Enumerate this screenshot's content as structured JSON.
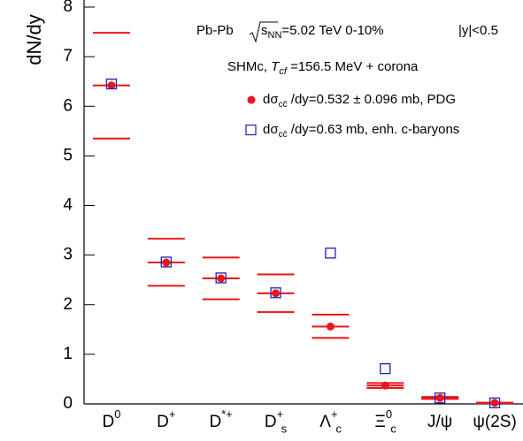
{
  "chart_data": {
    "type": "errorpoint",
    "y_label": "dN/dy",
    "annotations": [
      {
        "parts": [
          "Pb-Pb",
          "s",
          "NN",
          "=5.02 TeV 0-10%",
          "|y|<0.5"
        ]
      },
      {
        "parts": [
          "SHMc, ",
          "T",
          "cf",
          " =156.5 MeV + corona"
        ]
      }
    ],
    "categories": [
      [
        "D",
        "0"
      ],
      [
        "D",
        "+"
      ],
      [
        "D",
        "*+"
      ],
      [
        "D",
        "+",
        "s"
      ],
      [
        "Λ",
        "+",
        "c"
      ],
      [
        "Ξ",
        "0",
        "c"
      ],
      [
        "J/ψ"
      ],
      [
        "ψ(2S)"
      ]
    ],
    "series": [
      {
        "name": [
          "dσ",
          "cc̄",
          " /dy=0.532 ± 0.096 mb, PDG"
        ],
        "color": "#e8161a",
        "marker": "circle",
        "values": [
          6.42,
          2.85,
          2.53,
          2.23,
          1.56,
          0.37,
          0.12,
          0.02
        ],
        "upper": [
          7.48,
          3.33,
          2.95,
          2.61,
          1.8,
          0.42,
          0.14,
          0.025
        ],
        "lower": [
          5.35,
          2.38,
          2.11,
          1.85,
          1.33,
          0.32,
          0.1,
          0.015
        ]
      },
      {
        "name": [
          "dσ",
          "cc̄",
          " /dy=0.63 mb, enh. c-baryons"
        ],
        "color": "#1f1fb4",
        "marker": "square",
        "values": [
          6.45,
          2.86,
          2.54,
          2.24,
          3.04,
          0.71,
          0.12,
          0.02
        ]
      }
    ],
    "ylim": [
      0,
      8
    ],
    "yticks": [
      0,
      1,
      2,
      3,
      4,
      5,
      6,
      7,
      8
    ]
  }
}
